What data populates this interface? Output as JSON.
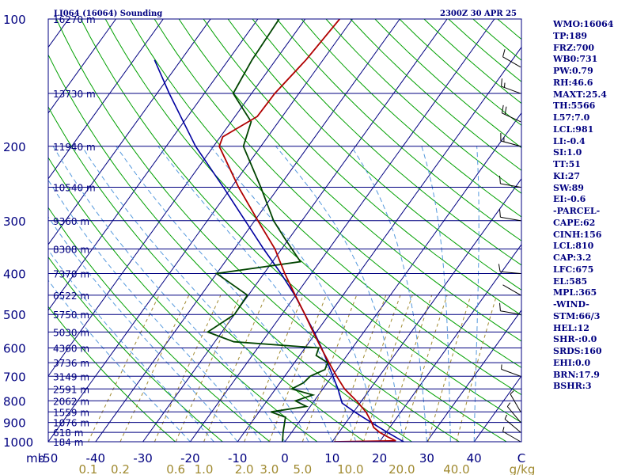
{
  "header": {
    "title": "LI064 (16064) Sounding",
    "time": "2300Z 30 APR 25"
  },
  "indices": [
    "WMO:16064",
    "TP:189",
    "FRZ:700",
    "WB0:731",
    "PW:0.79",
    "RH:46.6",
    "MAXT:25.4",
    "TH:5566",
    "L57:7.0",
    "LCL:981",
    "LI:-0.4",
    "SI:1.0",
    "TT:51",
    "KI:27",
    "SW:89",
    "EI:-0.6",
    "-PARCEL-",
    "CAPE:62",
    "CINH:156",
    "LCL:810",
    "CAP:3.2",
    "LFC:675",
    "EL:585",
    "MPL:365",
    "-WIND-",
    "STM:66/3",
    "HEL:12",
    "SHR-:0.0",
    "SRDS:160",
    "EHI:0.0",
    "BRN:17.9",
    "BSHR:3"
  ],
  "colors": {
    "frame": "#000080",
    "isobar": "#000080",
    "isotherm": "#000080",
    "dry_adiabat": "#00a000",
    "moist_adiabat": "#5599dd",
    "mixing_ratio": "#a08a30",
    "temperature": "#b00000",
    "dewpoint": "#004400",
    "parcel": "#0000a0"
  },
  "chart_data": {
    "type": "skew-t",
    "y_scale": "log-pressure",
    "ylim_hpa": [
      1000,
      100
    ],
    "xlim_c": [
      -50,
      50
    ],
    "x_unit_label": "C",
    "y_unit_label": "mb",
    "pressure_ticks": [
      {
        "p": 100,
        "label": "100"
      },
      {
        "p": 200,
        "label": "200"
      },
      {
        "p": 300,
        "label": "300"
      },
      {
        "p": 400,
        "label": "400"
      },
      {
        "p": 500,
        "label": "500"
      },
      {
        "p": 600,
        "label": "600"
      },
      {
        "p": 700,
        "label": "700"
      },
      {
        "p": 800,
        "label": "800"
      },
      {
        "p": 900,
        "label": "900"
      },
      {
        "p": 1000,
        "label": "1000"
      }
    ],
    "temperature_ticks": [
      {
        "t": -50,
        "label": "-50"
      },
      {
        "t": -40,
        "label": "-40"
      },
      {
        "t": -30,
        "label": "-30"
      },
      {
        "t": -20,
        "label": "-20"
      },
      {
        "t": -10,
        "label": "-10"
      },
      {
        "t": 0,
        "label": "0"
      },
      {
        "t": 10,
        "label": "10"
      },
      {
        "t": 20,
        "label": "20"
      },
      {
        "t": 30,
        "label": "30"
      },
      {
        "t": 40,
        "label": "40"
      }
    ],
    "mixing_ratio_ticks": [
      {
        "w": 0.1,
        "label": "0.1"
      },
      {
        "w": 0.2,
        "label": "0.2"
      },
      {
        "w": 0.6,
        "label": "0.6"
      },
      {
        "w": 1.0,
        "label": "1.0"
      },
      {
        "w": 2.0,
        "label": "2.0"
      },
      {
        "w": 3.0,
        "label": "3.0"
      },
      {
        "w": 5.0,
        "label": "5.0"
      },
      {
        "w": 10.0,
        "label": "10.0"
      },
      {
        "w": 20.0,
        "label": "20.0"
      },
      {
        "w": 40.0,
        "label": "40.0"
      }
    ],
    "mixing_ratio_unit": "g/kg",
    "mixing_ratio_lines": [
      0.1,
      0.2,
      0.4,
      0.6,
      1,
      2,
      3,
      5,
      8,
      10,
      12,
      16,
      20,
      28,
      40
    ],
    "height_levels": [
      {
        "p": 100,
        "label": "16270 m"
      },
      {
        "p": 150,
        "label": "13730 m"
      },
      {
        "p": 200,
        "label": "11940 m"
      },
      {
        "p": 250,
        "label": "10540 m"
      },
      {
        "p": 300,
        "label": "9360 m"
      },
      {
        "p": 350,
        "label": "8308 m"
      },
      {
        "p": 400,
        "label": "7370 m"
      },
      {
        "p": 450,
        "label": "6522 m"
      },
      {
        "p": 500,
        "label": "5750 m"
      },
      {
        "p": 550,
        "label": "5030 m"
      },
      {
        "p": 600,
        "label": "4360 m"
      },
      {
        "p": 650,
        "label": "3736 m"
      },
      {
        "p": 700,
        "label": "3149 m"
      },
      {
        "p": 750,
        "label": "2591 m"
      },
      {
        "p": 800,
        "label": "2062 m"
      },
      {
        "p": 850,
        "label": "1559 m"
      },
      {
        "p": 900,
        "label": "1076 m"
      },
      {
        "p": 950,
        "label": "618 m"
      },
      {
        "p": 1000,
        "label": "184 m"
      }
    ],
    "temperature_profile": [
      {
        "p": 1000,
        "t": 10.4
      },
      {
        "p": 995,
        "t": 23.3
      },
      {
        "p": 975,
        "t": 21.1
      },
      {
        "p": 950,
        "t": 18.6
      },
      {
        "p": 925,
        "t": 16.6
      },
      {
        "p": 900,
        "t": 15.4
      },
      {
        "p": 850,
        "t": 12.6
      },
      {
        "p": 800,
        "t": 8.9
      },
      {
        "p": 750,
        "t": 4.6
      },
      {
        "p": 700,
        "t": 1.0
      },
      {
        "p": 650,
        "t": -2.7
      },
      {
        "p": 600,
        "t": -6.6
      },
      {
        "p": 550,
        "t": -10.7
      },
      {
        "p": 500,
        "t": -15.1
      },
      {
        "p": 450,
        "t": -20.1
      },
      {
        "p": 400,
        "t": -25.6
      },
      {
        "p": 350,
        "t": -31.4
      },
      {
        "p": 300,
        "t": -39.3
      },
      {
        "p": 250,
        "t": -48.5
      },
      {
        "p": 200,
        "t": -58.8
      },
      {
        "p": 190,
        "t": -59.5
      },
      {
        "p": 170,
        "t": -55.3
      },
      {
        "p": 150,
        "t": -55.1
      },
      {
        "p": 125,
        "t": -53.6
      },
      {
        "p": 100,
        "t": -52.7
      }
    ],
    "dewpoint_profile": [
      {
        "p": 1000,
        "t": -0.5
      },
      {
        "p": 950,
        "t": -1.8
      },
      {
        "p": 900,
        "t": -3.0
      },
      {
        "p": 875,
        "t": -3.6
      },
      {
        "p": 850,
        "t": -7.5
      },
      {
        "p": 825,
        "t": -0.8
      },
      {
        "p": 800,
        "t": -4.0
      },
      {
        "p": 775,
        "t": -1.2
      },
      {
        "p": 750,
        "t": -6.6
      },
      {
        "p": 725,
        "t": -5.0
      },
      {
        "p": 700,
        "t": -4.6
      },
      {
        "p": 675,
        "t": -2.5
      },
      {
        "p": 650,
        "t": -3.0
      },
      {
        "p": 625,
        "t": -6.5
      },
      {
        "p": 600,
        "t": -7.1
      },
      {
        "p": 580,
        "t": -26.0
      },
      {
        "p": 550,
        "t": -33.0
      },
      {
        "p": 500,
        "t": -30.0
      },
      {
        "p": 450,
        "t": -30.2
      },
      {
        "p": 400,
        "t": -40.0
      },
      {
        "p": 375,
        "t": -24.1
      },
      {
        "p": 330,
        "t": -31.0
      },
      {
        "p": 300,
        "t": -36.0
      },
      {
        "p": 250,
        "t": -43.8
      },
      {
        "p": 200,
        "t": -53.7
      },
      {
        "p": 175,
        "t": -55.8
      },
      {
        "p": 150,
        "t": -63.9
      },
      {
        "p": 125,
        "t": -65.0
      },
      {
        "p": 100,
        "t": -65.5
      }
    ],
    "parcel_profile": [
      {
        "p": 1000,
        "t": 25.1
      },
      {
        "p": 950,
        "t": 20.2
      },
      {
        "p": 900,
        "t": 15.3
      },
      {
        "p": 850,
        "t": 10.2
      },
      {
        "p": 810,
        "t": 6.2
      },
      {
        "p": 750,
        "t": 3.2
      },
      {
        "p": 700,
        "t": 0.2
      },
      {
        "p": 650,
        "t": -3.0
      },
      {
        "p": 600,
        "t": -6.5
      },
      {
        "p": 550,
        "t": -10.5
      },
      {
        "p": 500,
        "t": -15.1
      },
      {
        "p": 450,
        "t": -20.2
      },
      {
        "p": 400,
        "t": -26.4
      },
      {
        "p": 350,
        "t": -33.8
      },
      {
        "p": 300,
        "t": -42.0
      },
      {
        "p": 250,
        "t": -51.7
      },
      {
        "p": 200,
        "t": -63.8
      },
      {
        "p": 150,
        "t": -77.4
      },
      {
        "p": 125,
        "t": -85.6
      }
    ],
    "wind_barbs": [
      {
        "p": 1000,
        "dir": 300,
        "speed_kt": 5
      },
      {
        "p": 950,
        "dir": 310,
        "speed_kt": 5
      },
      {
        "p": 900,
        "dir": 320,
        "speed_kt": 5
      },
      {
        "p": 850,
        "dir": 330,
        "speed_kt": 5
      },
      {
        "p": 700,
        "dir": 290,
        "speed_kt": 5
      },
      {
        "p": 500,
        "dir": 280,
        "speed_kt": 10
      },
      {
        "p": 450,
        "dir": 300,
        "speed_kt": 0
      },
      {
        "p": 400,
        "dir": 275,
        "speed_kt": 10
      },
      {
        "p": 300,
        "dir": 280,
        "speed_kt": 10
      },
      {
        "p": 250,
        "dir": 280,
        "speed_kt": 10
      },
      {
        "p": 200,
        "dir": 285,
        "speed_kt": 15
      },
      {
        "p": 175,
        "dir": 295,
        "speed_kt": 20
      },
      {
        "p": 150,
        "dir": 290,
        "speed_kt": 15
      },
      {
        "p": 130,
        "dir": 300,
        "speed_kt": 10
      }
    ]
  }
}
